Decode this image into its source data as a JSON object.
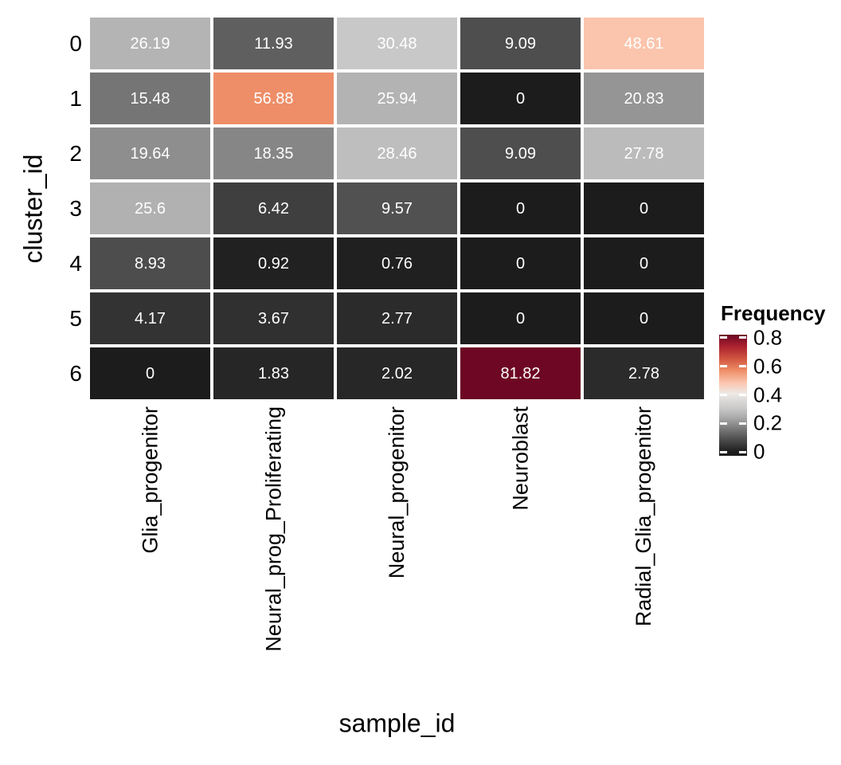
{
  "chart_data": {
    "type": "heatmap",
    "xlabel": "sample_id",
    "ylabel": "cluster_id",
    "legend_title": "Frequency",
    "rows": [
      "0",
      "1",
      "2",
      "3",
      "4",
      "5",
      "6"
    ],
    "columns": [
      "Glia_progenitor",
      "Neural_prog_Proliferating",
      "Neural_progenitor",
      "Neuroblast",
      "Radial_Glia_progenitor"
    ],
    "values": [
      [
        26.19,
        11.93,
        30.48,
        9.09,
        48.61
      ],
      [
        15.48,
        56.88,
        25.94,
        0,
        20.83
      ],
      [
        19.64,
        18.35,
        28.46,
        9.09,
        27.78
      ],
      [
        25.6,
        6.42,
        9.57,
        0,
        0
      ],
      [
        8.93,
        0.92,
        0.76,
        0,
        0
      ],
      [
        4.17,
        3.67,
        2.77,
        0,
        0
      ],
      [
        0,
        1.83,
        2.02,
        81.82,
        2.78
      ]
    ],
    "cell_labels": [
      [
        "26.19",
        "11.93",
        "30.48",
        "9.09",
        "48.61"
      ],
      [
        "15.48",
        "56.88",
        "25.94",
        "0",
        "20.83"
      ],
      [
        "19.64",
        "18.35",
        "28.46",
        "9.09",
        "27.78"
      ],
      [
        "25.6",
        "6.42",
        "9.57",
        "0",
        "0"
      ],
      [
        "8.93",
        "0.92",
        "0.76",
        "0",
        "0"
      ],
      [
        "4.17",
        "3.67",
        "2.77",
        "0",
        "0"
      ],
      [
        "0",
        "1.83",
        "2.02",
        "81.82",
        "2.78"
      ]
    ],
    "legend_ticks": [
      {
        "label": "0.8",
        "value": 0.8
      },
      {
        "label": "0.6",
        "value": 0.6
      },
      {
        "label": "0.4",
        "value": 0.4
      },
      {
        "label": "0.2",
        "value": 0.2
      },
      {
        "label": "0",
        "value": 0
      }
    ],
    "scale": {
      "domain": [
        0,
        81.82
      ],
      "cell_text_color": "#ffffff",
      "grid_gap_color": "#ffffff",
      "stops": [
        {
          "v": 0,
          "c": "#1c1c1c"
        },
        {
          "v": 8.18,
          "c": "#494949"
        },
        {
          "v": 16.36,
          "c": "#7a7a7a"
        },
        {
          "v": 24.55,
          "c": "#acacac"
        },
        {
          "v": 30.5,
          "c": "#c8c8c8"
        },
        {
          "v": 40.9,
          "c": "#eee9e6"
        },
        {
          "v": 48.6,
          "c": "#fbc5ad"
        },
        {
          "v": 56.9,
          "c": "#ee8e68"
        },
        {
          "v": 65.5,
          "c": "#d05440"
        },
        {
          "v": 73.6,
          "c": "#ad2330"
        },
        {
          "v": 81.82,
          "c": "#6d0723"
        }
      ]
    }
  }
}
